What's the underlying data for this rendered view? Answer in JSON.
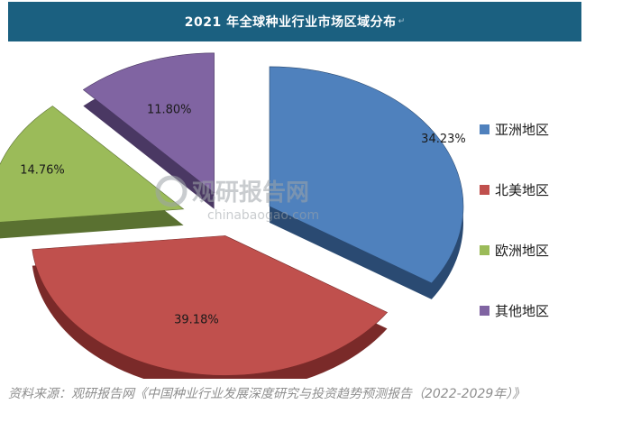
{
  "header": {
    "title": "2021 年全球种业行业市场区域分布",
    "title_mark": "↵"
  },
  "watermark": {
    "text_cn": "观研报告网",
    "text_en": "chinabaogao.com"
  },
  "source": {
    "text": "资料来源：观研报告网《中国种业行业发展深度研究与投资趋势预测报告（2022-2029年）》"
  },
  "chart_data": {
    "type": "pie",
    "variant": "exploded-3d",
    "title": "",
    "legend_position": "right",
    "categories": [
      "亚洲地区",
      "北美地区",
      "欧洲地区",
      "其他地区"
    ],
    "values": [
      34.23,
      39.18,
      14.76,
      11.8
    ],
    "labels": [
      "34.23%",
      "39.18%",
      "14.76%",
      "11.80%"
    ],
    "colors": [
      "#4f81bd",
      "#c0504d",
      "#9bbb59",
      "#8064a2"
    ],
    "side_colors": [
      "#2a4a72",
      "#7a2a29",
      "#5a7131",
      "#4a3863"
    ]
  }
}
